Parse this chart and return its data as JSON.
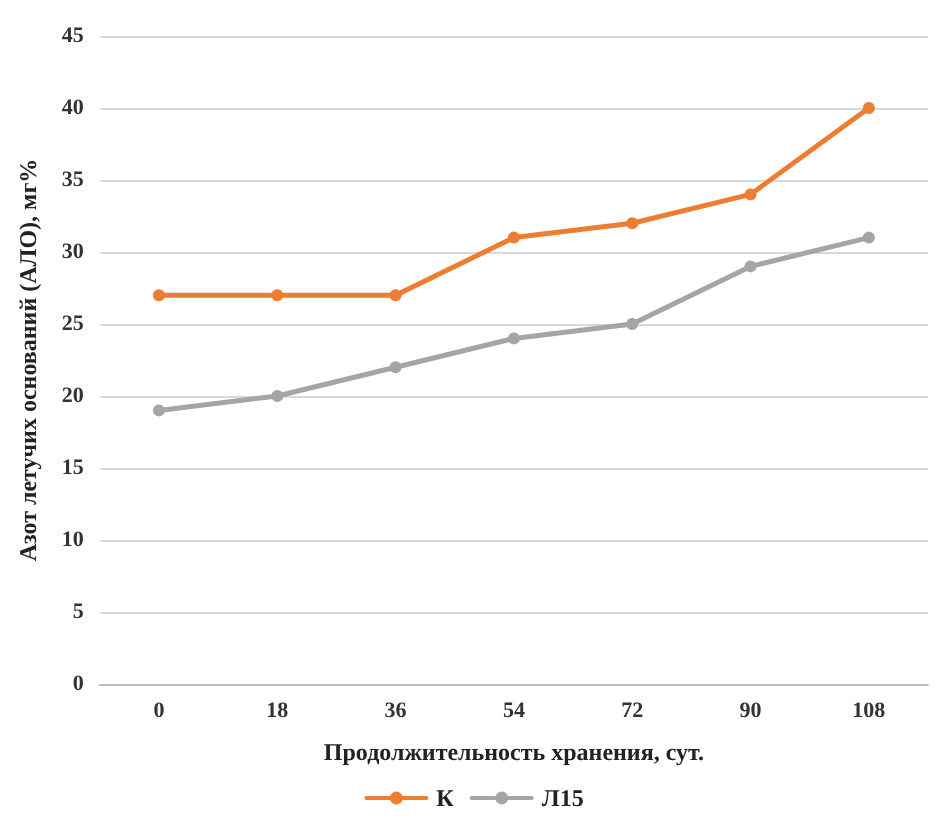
{
  "chart_data": {
    "type": "line",
    "xlabel": "Продолжительность хранения, сут.",
    "ylabel": "Азот летучих оснований (АЛО), мг%",
    "categories": [
      "0",
      "18",
      "36",
      "54",
      "72",
      "90",
      "108"
    ],
    "series": [
      {
        "name": "К",
        "color": "#ed7d31",
        "values": [
          27,
          27,
          27,
          31,
          32,
          34,
          40
        ]
      },
      {
        "name": "Л15",
        "color": "#a5a5a5",
        "values": [
          19,
          20,
          22,
          24,
          25,
          29,
          31
        ]
      }
    ],
    "ylim": [
      0,
      45
    ],
    "yticks": [
      0,
      5,
      10,
      15,
      20,
      25,
      30,
      35,
      40,
      45
    ],
    "grid": "y",
    "legend": "bottom",
    "marker": "circle",
    "line_style": "solid"
  }
}
